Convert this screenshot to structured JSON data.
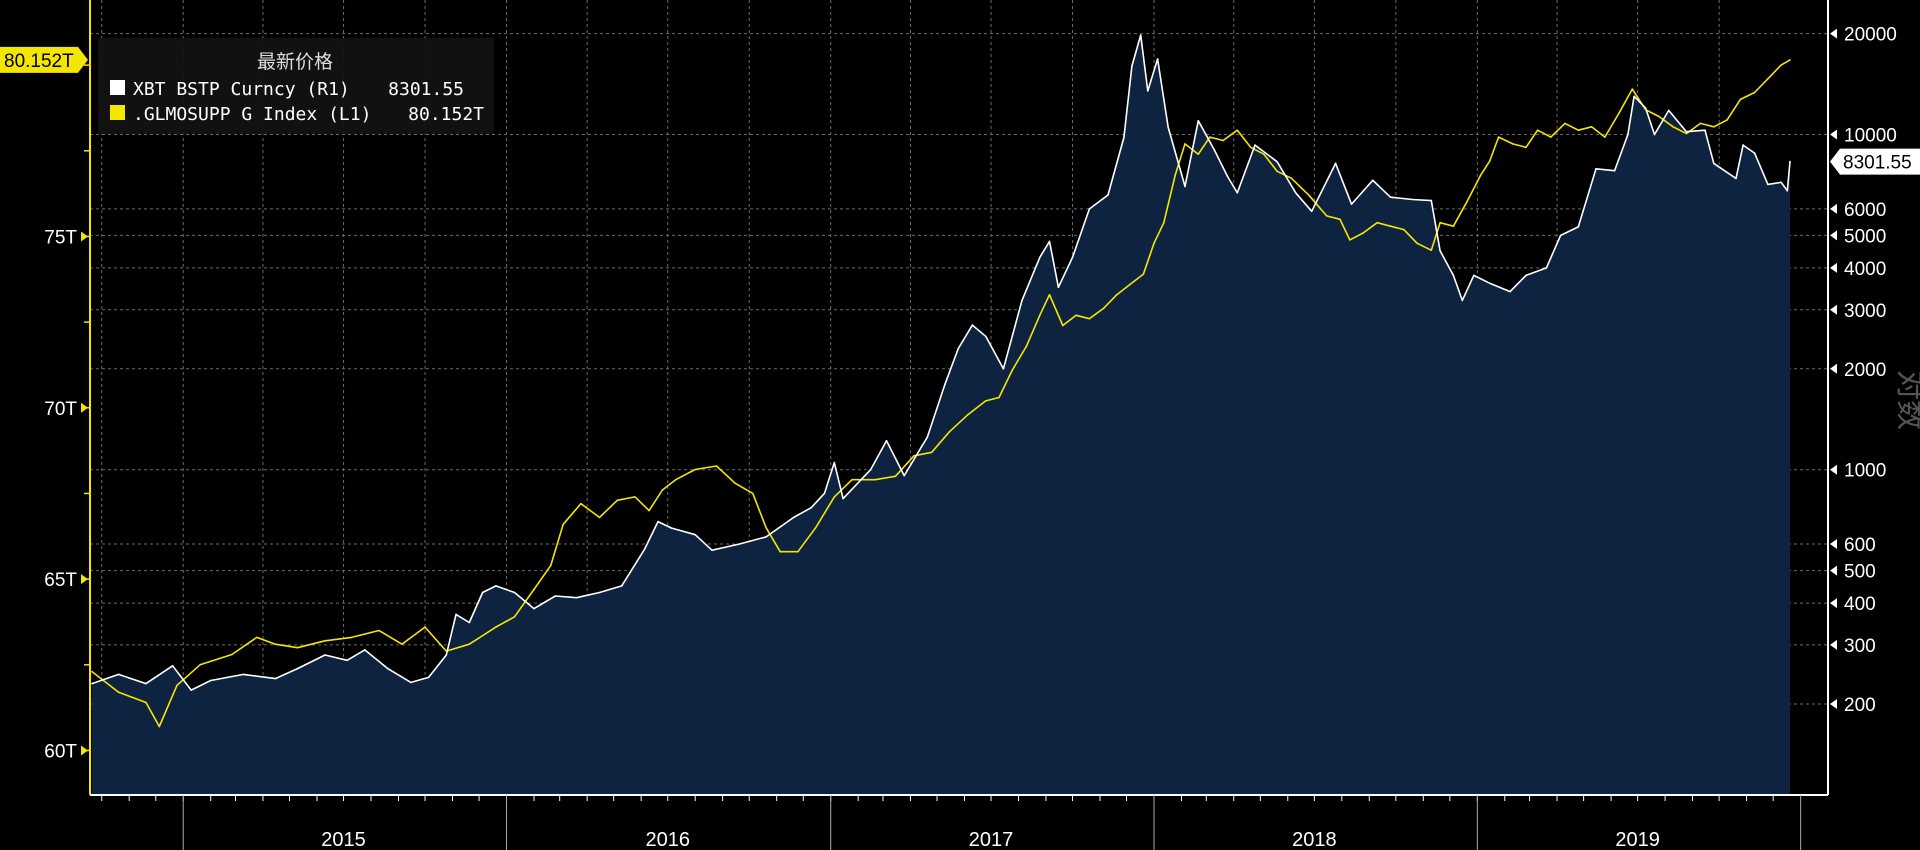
{
  "chart_data": {
    "type": "line",
    "x_range": [
      "2014-09-20",
      "2019-12-20"
    ],
    "year_labels": [
      "2015",
      "2016",
      "2017",
      "2018",
      "2019"
    ],
    "left_axis": {
      "ticks": [
        60,
        65,
        70,
        75
      ],
      "tick_labels": [
        "60T",
        "65T",
        "70T",
        "75T"
      ],
      "ylim": [
        58.7,
        81.9
      ]
    },
    "right_axis": {
      "scale": "log",
      "ticks": [
        200,
        300,
        400,
        500,
        600,
        1000,
        2000,
        3000,
        4000,
        5000,
        6000,
        10000,
        20000
      ],
      "tick_labels": [
        "200",
        "300",
        "400",
        "500",
        "600",
        "1000",
        "2000",
        "3000",
        "4000",
        "5000",
        "6000",
        "10000",
        "20000"
      ],
      "ylabel": "对数",
      "ylim": [
        107,
        25200
      ]
    },
    "legend": {
      "title": "最新价格",
      "placement": "top-left",
      "entries": [
        {
          "name": "XBT BSTP Curncy (R1)",
          "value": "8301.55",
          "color": "#ffffff"
        },
        {
          "name": ".GLMOSUPP G Index (L1)",
          "value": "80.152T",
          "color": "#f5e600"
        }
      ]
    },
    "last_value_tags": {
      "left": "80.152T",
      "right": "8301.55"
    },
    "series": [
      {
        "name": "XBT BSTP Curncy (R1)",
        "axis": "right",
        "color": "#ffffff",
        "fill": "#0d2340",
        "points": [
          [
            "2014-09-20",
            230
          ],
          [
            "2014-10-20",
            245
          ],
          [
            "2014-11-20",
            230
          ],
          [
            "2014-12-20",
            260
          ],
          [
            "2015-01-10",
            220
          ],
          [
            "2015-02-01",
            235
          ],
          [
            "2015-03-10",
            245
          ],
          [
            "2015-04-15",
            238
          ],
          [
            "2015-05-10",
            255
          ],
          [
            "2015-06-10",
            280
          ],
          [
            "2015-07-05",
            270
          ],
          [
            "2015-07-25",
            290
          ],
          [
            "2015-08-20",
            255
          ],
          [
            "2015-09-15",
            232
          ],
          [
            "2015-10-05",
            240
          ],
          [
            "2015-10-25",
            280
          ],
          [
            "2015-11-05",
            370
          ],
          [
            "2015-11-20",
            350
          ],
          [
            "2015-12-05",
            430
          ],
          [
            "2015-12-20",
            450
          ],
          [
            "2016-01-10",
            430
          ],
          [
            "2016-02-01",
            385
          ],
          [
            "2016-02-25",
            420
          ],
          [
            "2016-03-20",
            415
          ],
          [
            "2016-04-15",
            430
          ],
          [
            "2016-05-10",
            450
          ],
          [
            "2016-06-05",
            580
          ],
          [
            "2016-06-20",
            700
          ],
          [
            "2016-07-05",
            670
          ],
          [
            "2016-08-01",
            640
          ],
          [
            "2016-08-20",
            575
          ],
          [
            "2016-09-20",
            600
          ],
          [
            "2016-10-20",
            630
          ],
          [
            "2016-11-20",
            720
          ],
          [
            "2016-12-10",
            770
          ],
          [
            "2016-12-25",
            850
          ],
          [
            "2017-01-05",
            1050
          ],
          [
            "2017-01-15",
            820
          ],
          [
            "2017-02-15",
            1000
          ],
          [
            "2017-03-05",
            1220
          ],
          [
            "2017-03-25",
            960
          ],
          [
            "2017-04-20",
            1250
          ],
          [
            "2017-05-10",
            1800
          ],
          [
            "2017-05-25",
            2300
          ],
          [
            "2017-06-10",
            2700
          ],
          [
            "2017-06-25",
            2500
          ],
          [
            "2017-07-15",
            2000
          ],
          [
            "2017-08-05",
            3200
          ],
          [
            "2017-08-25",
            4300
          ],
          [
            "2017-09-05",
            4800
          ],
          [
            "2017-09-15",
            3500
          ],
          [
            "2017-10-01",
            4300
          ],
          [
            "2017-10-20",
            6000
          ],
          [
            "2017-11-10",
            6600
          ],
          [
            "2017-11-28",
            9800
          ],
          [
            "2017-12-07",
            16000
          ],
          [
            "2017-12-17",
            19800
          ],
          [
            "2017-12-25",
            13500
          ],
          [
            "2018-01-05",
            16800
          ],
          [
            "2018-01-17",
            10500
          ],
          [
            "2018-02-05",
            7000
          ],
          [
            "2018-02-20",
            11000
          ],
          [
            "2018-03-10",
            9000
          ],
          [
            "2018-03-25",
            7500
          ],
          [
            "2018-04-05",
            6700
          ],
          [
            "2018-04-25",
            9300
          ],
          [
            "2018-05-20",
            8300
          ],
          [
            "2018-06-10",
            6700
          ],
          [
            "2018-06-28",
            5900
          ],
          [
            "2018-07-25",
            8200
          ],
          [
            "2018-08-12",
            6200
          ],
          [
            "2018-09-05",
            7300
          ],
          [
            "2018-09-25",
            6500
          ],
          [
            "2018-10-20",
            6400
          ],
          [
            "2018-11-10",
            6350
          ],
          [
            "2018-11-20",
            4500
          ],
          [
            "2018-12-05",
            3800
          ],
          [
            "2018-12-15",
            3200
          ],
          [
            "2018-12-28",
            3800
          ],
          [
            "2019-01-15",
            3600
          ],
          [
            "2019-02-07",
            3400
          ],
          [
            "2019-02-25",
            3800
          ],
          [
            "2019-03-20",
            4000
          ],
          [
            "2019-04-05",
            5000
          ],
          [
            "2019-04-25",
            5300
          ],
          [
            "2019-05-15",
            7900
          ],
          [
            "2019-06-05",
            7800
          ],
          [
            "2019-06-20",
            10000
          ],
          [
            "2019-06-27",
            13000
          ],
          [
            "2019-07-10",
            12000
          ],
          [
            "2019-07-20",
            10000
          ],
          [
            "2019-08-05",
            11800
          ],
          [
            "2019-08-25",
            10200
          ],
          [
            "2019-09-15",
            10300
          ],
          [
            "2019-09-25",
            8200
          ],
          [
            "2019-10-20",
            7400
          ],
          [
            "2019-10-28",
            9300
          ],
          [
            "2019-11-10",
            8800
          ],
          [
            "2019-11-25",
            7100
          ],
          [
            "2019-12-10",
            7200
          ],
          [
            "2019-12-17",
            6800
          ],
          [
            "2019-12-20",
            8301.55
          ]
        ]
      },
      {
        "name": ".GLMOSUPP G Index (L1)",
        "axis": "left",
        "color": "#f5e600",
        "points": [
          [
            "2014-09-20",
            62.3
          ],
          [
            "2014-10-20",
            61.7
          ],
          [
            "2014-11-20",
            61.4
          ],
          [
            "2014-12-05",
            60.7
          ],
          [
            "2014-12-25",
            61.9
          ],
          [
            "2015-01-20",
            62.5
          ],
          [
            "2015-02-25",
            62.8
          ],
          [
            "2015-03-25",
            63.3
          ],
          [
            "2015-04-15",
            63.1
          ],
          [
            "2015-05-10",
            63.0
          ],
          [
            "2015-06-10",
            63.2
          ],
          [
            "2015-07-10",
            63.3
          ],
          [
            "2015-08-10",
            63.5
          ],
          [
            "2015-09-05",
            63.1
          ],
          [
            "2015-10-01",
            63.6
          ],
          [
            "2015-10-25",
            62.9
          ],
          [
            "2015-11-20",
            63.1
          ],
          [
            "2015-12-20",
            63.6
          ],
          [
            "2016-01-10",
            63.9
          ],
          [
            "2016-02-01",
            64.7
          ],
          [
            "2016-02-20",
            65.4
          ],
          [
            "2016-03-05",
            66.6
          ],
          [
            "2016-03-25",
            67.2
          ],
          [
            "2016-04-15",
            66.8
          ],
          [
            "2016-05-05",
            67.3
          ],
          [
            "2016-05-25",
            67.4
          ],
          [
            "2016-06-10",
            67.0
          ],
          [
            "2016-06-25",
            67.6
          ],
          [
            "2016-07-10",
            67.9
          ],
          [
            "2016-08-01",
            68.2
          ],
          [
            "2016-08-25",
            68.3
          ],
          [
            "2016-09-15",
            67.8
          ],
          [
            "2016-10-05",
            67.5
          ],
          [
            "2016-10-20",
            66.5
          ],
          [
            "2016-11-05",
            65.8
          ],
          [
            "2016-11-25",
            65.8
          ],
          [
            "2016-12-15",
            66.5
          ],
          [
            "2017-01-05",
            67.4
          ],
          [
            "2017-01-25",
            67.9
          ],
          [
            "2017-02-20",
            67.9
          ],
          [
            "2017-03-15",
            68.0
          ],
          [
            "2017-04-05",
            68.6
          ],
          [
            "2017-04-25",
            68.7
          ],
          [
            "2017-05-15",
            69.3
          ],
          [
            "2017-06-05",
            69.8
          ],
          [
            "2017-06-25",
            70.2
          ],
          [
            "2017-07-10",
            70.3
          ],
          [
            "2017-07-25",
            71.1
          ],
          [
            "2017-08-10",
            71.8
          ],
          [
            "2017-08-25",
            72.7
          ],
          [
            "2017-09-05",
            73.3
          ],
          [
            "2017-09-20",
            72.4
          ],
          [
            "2017-10-05",
            72.7
          ],
          [
            "2017-10-20",
            72.6
          ],
          [
            "2017-11-05",
            72.9
          ],
          [
            "2017-11-20",
            73.3
          ],
          [
            "2017-12-05",
            73.6
          ],
          [
            "2017-12-20",
            73.9
          ],
          [
            "2018-01-01",
            74.8
          ],
          [
            "2018-01-12",
            75.4
          ],
          [
            "2018-01-25",
            76.8
          ],
          [
            "2018-02-05",
            77.7
          ],
          [
            "2018-02-20",
            77.4
          ],
          [
            "2018-03-05",
            77.9
          ],
          [
            "2018-03-20",
            77.8
          ],
          [
            "2018-04-05",
            78.1
          ],
          [
            "2018-04-20",
            77.6
          ],
          [
            "2018-05-05",
            77.4
          ],
          [
            "2018-05-20",
            76.9
          ],
          [
            "2018-06-05",
            76.7
          ],
          [
            "2018-06-25",
            76.2
          ],
          [
            "2018-07-15",
            75.6
          ],
          [
            "2018-07-30",
            75.5
          ],
          [
            "2018-08-10",
            74.9
          ],
          [
            "2018-08-25",
            75.1
          ],
          [
            "2018-09-10",
            75.4
          ],
          [
            "2018-09-25",
            75.3
          ],
          [
            "2018-10-10",
            75.2
          ],
          [
            "2018-10-25",
            74.8
          ],
          [
            "2018-11-10",
            74.6
          ],
          [
            "2018-11-20",
            75.4
          ],
          [
            "2018-12-05",
            75.3
          ],
          [
            "2018-12-20",
            76.0
          ],
          [
            "2019-01-05",
            76.8
          ],
          [
            "2019-01-15",
            77.2
          ],
          [
            "2019-01-25",
            77.9
          ],
          [
            "2019-02-10",
            77.7
          ],
          [
            "2019-02-25",
            77.6
          ],
          [
            "2019-03-10",
            78.1
          ],
          [
            "2019-03-25",
            77.9
          ],
          [
            "2019-04-10",
            78.3
          ],
          [
            "2019-04-25",
            78.1
          ],
          [
            "2019-05-10",
            78.2
          ],
          [
            "2019-05-25",
            77.9
          ],
          [
            "2019-06-10",
            78.6
          ],
          [
            "2019-06-25",
            79.3
          ],
          [
            "2019-07-10",
            78.7
          ],
          [
            "2019-07-25",
            78.5
          ],
          [
            "2019-08-10",
            78.2
          ],
          [
            "2019-08-25",
            78.0
          ],
          [
            "2019-09-10",
            78.3
          ],
          [
            "2019-09-25",
            78.2
          ],
          [
            "2019-10-10",
            78.4
          ],
          [
            "2019-10-25",
            79.0
          ],
          [
            "2019-11-10",
            79.2
          ],
          [
            "2019-11-25",
            79.6
          ],
          [
            "2019-12-10",
            80.0
          ],
          [
            "2019-12-20",
            80.152
          ]
        ]
      }
    ]
  }
}
